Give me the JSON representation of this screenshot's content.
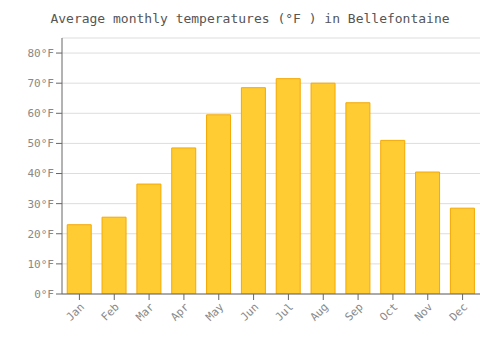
{
  "chart_data": {
    "type": "bar",
    "title": "Average monthly temperatures (°F ) in Bellefontaine",
    "categories": [
      "Jan",
      "Feb",
      "Mar",
      "Apr",
      "May",
      "Jun",
      "Jul",
      "Aug",
      "Sep",
      "Oct",
      "Nov",
      "Dec"
    ],
    "values": [
      23,
      25.5,
      36.5,
      48.5,
      59.5,
      68.5,
      71.5,
      70,
      63.5,
      51,
      40.5,
      28.5
    ],
    "color": "#FFCC33",
    "ylim": [
      0,
      85
    ],
    "yticks": [
      {
        "value": 0,
        "label": "0°F"
      },
      {
        "value": 10,
        "label": "10°F"
      },
      {
        "value": 20,
        "label": "20°F"
      },
      {
        "value": 30,
        "label": "30°F"
      },
      {
        "value": 40,
        "label": "40°F"
      },
      {
        "value": 50,
        "label": "50°F"
      },
      {
        "value": 60,
        "label": "60°F"
      },
      {
        "value": 70,
        "label": "70°F"
      },
      {
        "value": 80,
        "label": "80°F"
      }
    ],
    "grid": true
  }
}
